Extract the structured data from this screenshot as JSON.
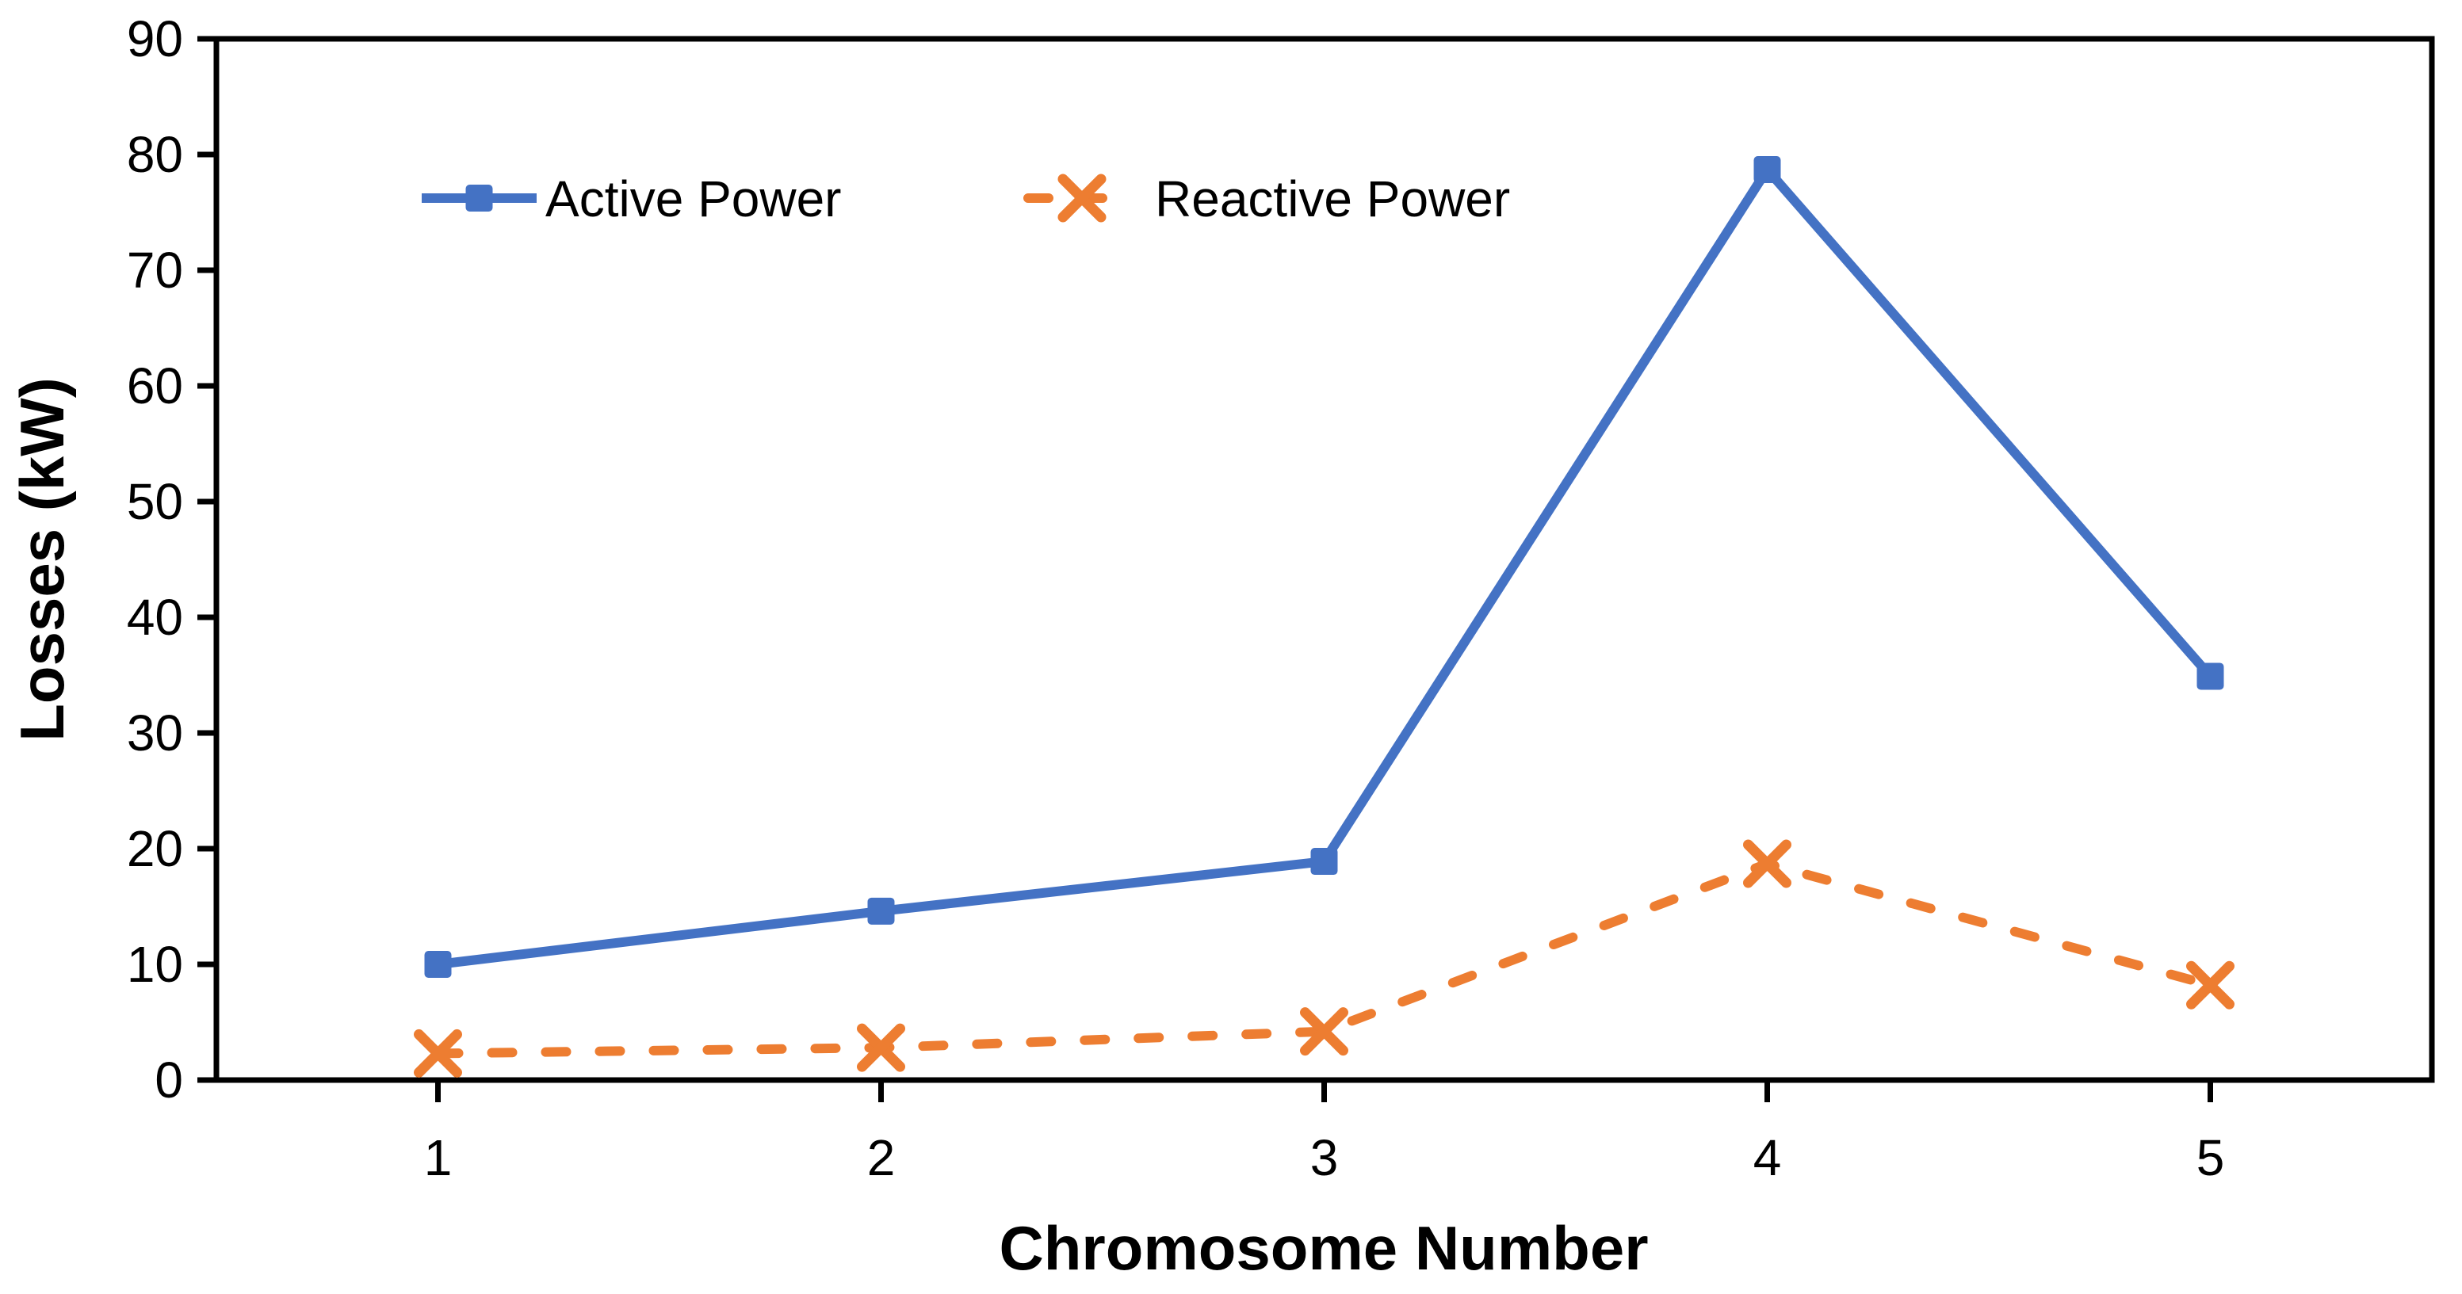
{
  "chart_data": {
    "type": "line",
    "title": "",
    "xlabel": "Chromosome Number",
    "ylabel": "Losses (kW)",
    "categories": [
      "1",
      "2",
      "3",
      "4",
      "5"
    ],
    "series": [
      {
        "name": "Active Power",
        "values": [
          10,
          14.6,
          18.9,
          78.7,
          34.9
        ],
        "color": "#4472C4",
        "line_style": "solid",
        "marker": "square"
      },
      {
        "name": "Reactive Power",
        "values": [
          2.3,
          2.8,
          4.2,
          18.7,
          8.2
        ],
        "color": "#ED7D31",
        "line_style": "dashed",
        "marker": "x"
      }
    ],
    "ylim": [
      0,
      90
    ],
    "ytick_step": 10,
    "yticks": [
      0,
      10,
      20,
      30,
      40,
      50,
      60,
      70,
      80,
      90
    ],
    "grid": "off",
    "legend_position": "top-inside",
    "axis_color": "#000000",
    "background_color": "#FFFFFF"
  }
}
